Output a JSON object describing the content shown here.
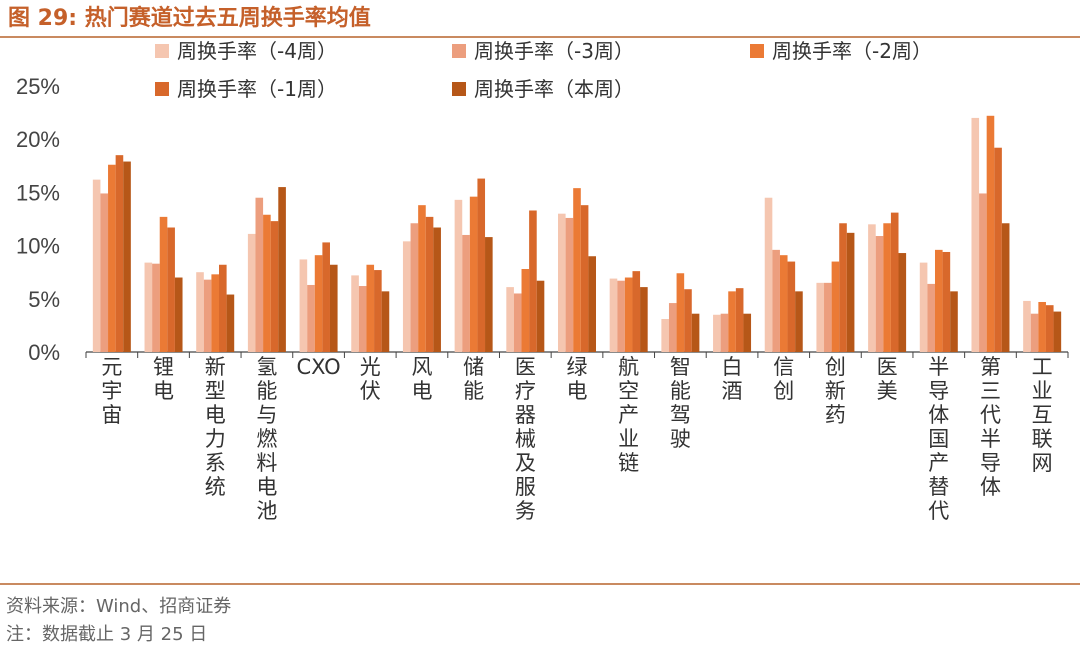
{
  "figure": {
    "title": "图 29:  热门赛道过去五周换手率均值",
    "source": "资料来源：Wind、招商证券",
    "note": "注：数据截止 3 月 25 日"
  },
  "chart_data": {
    "type": "bar",
    "title": "",
    "xlabel": "",
    "ylabel": "",
    "ylim": [
      0,
      25
    ],
    "yticks": [
      "0%",
      "5%",
      "10%",
      "15%",
      "20%",
      "25%"
    ],
    "grid": false,
    "legend_position": "top",
    "categories": [
      "元宇宙",
      "锂电",
      "新型电力系统",
      "氢能与燃料电池",
      "CXO",
      "光伏",
      "风电",
      "储能",
      "医疗器械及服务",
      "绿电",
      "航空产业链",
      "智能驾驶",
      "白酒",
      "信创",
      "创新药",
      "医美",
      "半导体国产替代",
      "第三代半导体",
      "工业互联网"
    ],
    "series": [
      {
        "name": "周换手率（-4周）",
        "color": "#f5c6b0",
        "values": [
          16.2,
          8.4,
          7.5,
          11.1,
          8.7,
          7.2,
          10.4,
          14.3,
          6.1,
          13.0,
          6.9,
          3.1,
          3.5,
          14.5,
          6.5,
          12.0,
          8.4,
          22.0,
          4.8
        ]
      },
      {
        "name": "周换手率（-3周）",
        "color": "#ec9e7e",
        "values": [
          14.9,
          8.3,
          6.8,
          14.5,
          6.3,
          6.2,
          12.1,
          11.0,
          5.5,
          12.6,
          6.7,
          4.6,
          3.6,
          9.6,
          6.5,
          10.9,
          6.4,
          14.9,
          3.6
        ]
      },
      {
        "name": "周换手率（-2周）",
        "color": "#eb7a35",
        "values": [
          17.6,
          12.7,
          7.3,
          12.9,
          9.1,
          8.2,
          13.8,
          14.6,
          7.8,
          15.4,
          7.0,
          7.4,
          5.7,
          9.1,
          8.5,
          12.1,
          9.6,
          22.2,
          4.7
        ]
      },
      {
        "name": "周换手率（-1周）",
        "color": "#d8682b",
        "values": [
          18.5,
          11.7,
          8.2,
          12.3,
          10.3,
          7.7,
          12.7,
          16.3,
          13.3,
          13.8,
          7.6,
          5.9,
          6.0,
          8.5,
          12.1,
          13.1,
          9.4,
          19.2,
          4.4
        ]
      },
      {
        "name": "周换手率（本周）",
        "color": "#b65718",
        "values": [
          17.9,
          7.0,
          5.4,
          15.5,
          8.2,
          5.7,
          11.7,
          10.8,
          6.7,
          9.0,
          6.1,
          3.6,
          3.6,
          5.7,
          11.2,
          9.3,
          5.7,
          12.1,
          3.8
        ]
      }
    ]
  }
}
